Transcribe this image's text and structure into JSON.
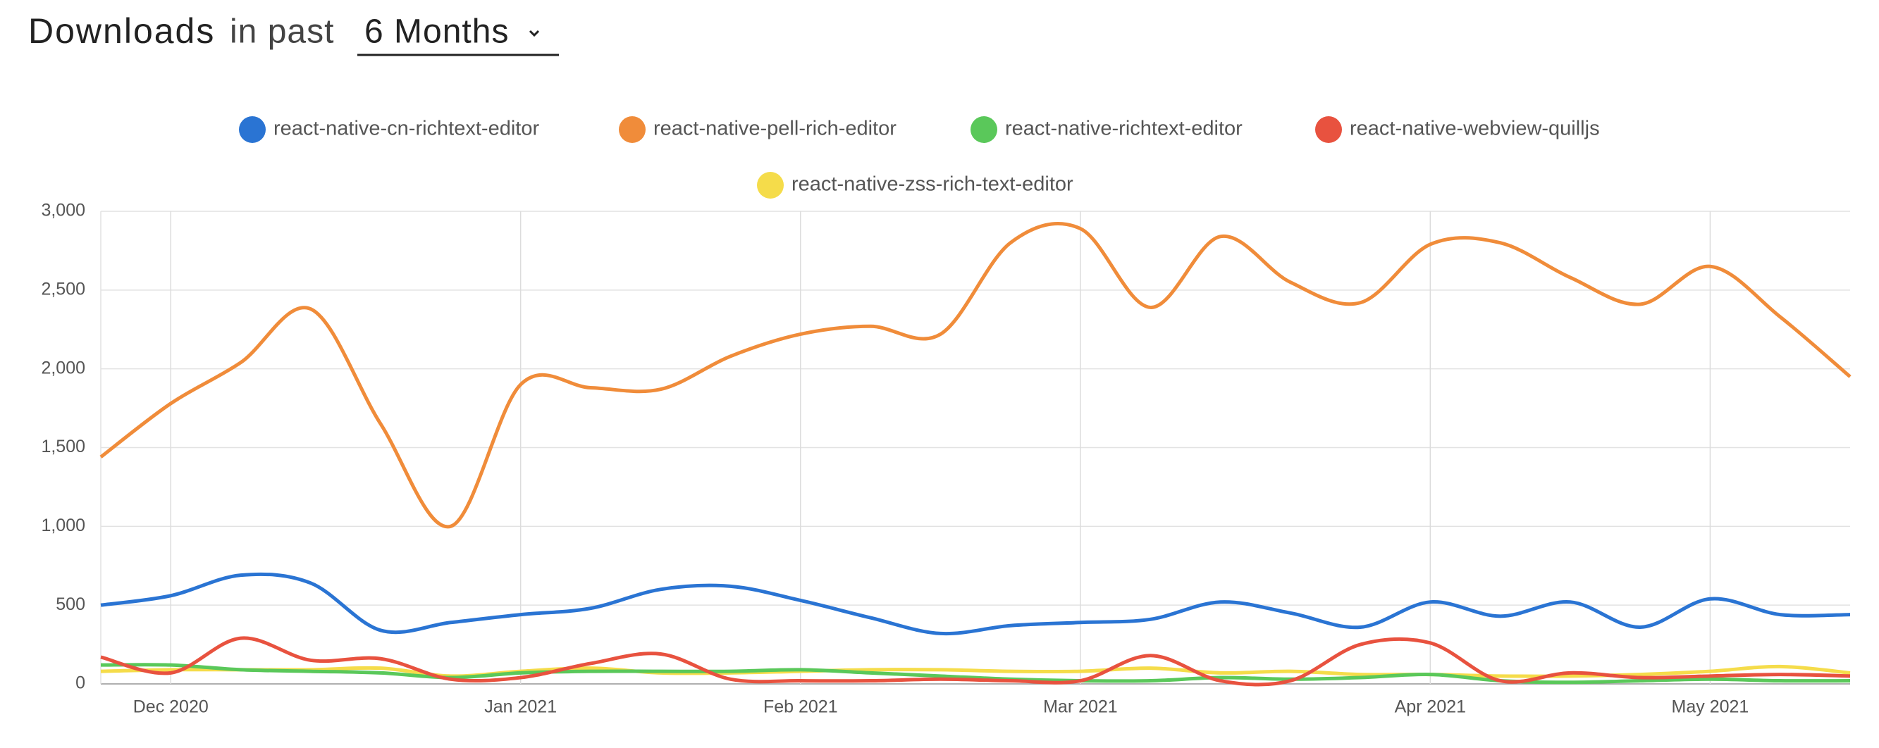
{
  "header": {
    "title": "Downloads",
    "subtitle": "in past",
    "period": "6 Months"
  },
  "chart_data": {
    "type": "line",
    "categories": [
      null,
      "Dec 2020",
      null,
      null,
      null,
      null,
      "Jan 2021",
      null,
      null,
      null,
      "Feb 2021",
      null,
      null,
      null,
      "Mar 2021",
      null,
      null,
      null,
      null,
      "Apr 2021",
      null,
      null,
      null,
      "May 2021",
      null,
      null
    ],
    "series": [
      {
        "name": "react-native-cn-richtext-editor",
        "color": "#2a74d3",
        "values": [
          500,
          560,
          690,
          640,
          340,
          390,
          440,
          480,
          600,
          620,
          530,
          420,
          320,
          370,
          390,
          410,
          520,
          450,
          360,
          520,
          430,
          520,
          360,
          540,
          440,
          440
        ]
      },
      {
        "name": "react-native-pell-rich-editor",
        "color": "#f08c3a",
        "values": [
          1440,
          1780,
          2040,
          2380,
          1650,
          1000,
          1900,
          1880,
          1870,
          2080,
          2220,
          2270,
          2220,
          2800,
          2890,
          2390,
          2840,
          2550,
          2420,
          2790,
          2800,
          2580,
          2410,
          2650,
          2330,
          1950
        ]
      },
      {
        "name": "react-native-richtext-editor",
        "color": "#5ac85a",
        "values": [
          120,
          120,
          90,
          80,
          70,
          40,
          70,
          80,
          80,
          80,
          90,
          70,
          50,
          30,
          20,
          20,
          40,
          30,
          40,
          60,
          20,
          10,
          20,
          30,
          20,
          20
        ]
      },
      {
        "name": "react-native-webview-quilljs",
        "color": "#e8523f",
        "values": [
          170,
          70,
          290,
          150,
          160,
          30,
          40,
          130,
          190,
          30,
          20,
          20,
          30,
          20,
          20,
          180,
          20,
          20,
          250,
          260,
          20,
          70,
          40,
          50,
          60,
          50
        ]
      },
      {
        "name": "react-native-zss-rich-text-editor",
        "color": "#f5dc4a",
        "values": [
          80,
          90,
          90,
          90,
          100,
          50,
          80,
          100,
          70,
          70,
          80,
          90,
          90,
          80,
          80,
          100,
          70,
          80,
          60,
          60,
          50,
          50,
          60,
          80,
          110,
          70
        ]
      }
    ],
    "ylim": [
      0,
      3000
    ],
    "yticks": [
      0,
      500,
      {
        "value": 1000,
        "label": "1,000"
      },
      {
        "value": 1500,
        "label": "1,500"
      },
      {
        "value": 2000,
        "label": "2,000"
      },
      {
        "value": 2500,
        "label": "2,500"
      },
      {
        "value": 3000,
        "label": "3,000"
      }
    ],
    "grid": true
  }
}
